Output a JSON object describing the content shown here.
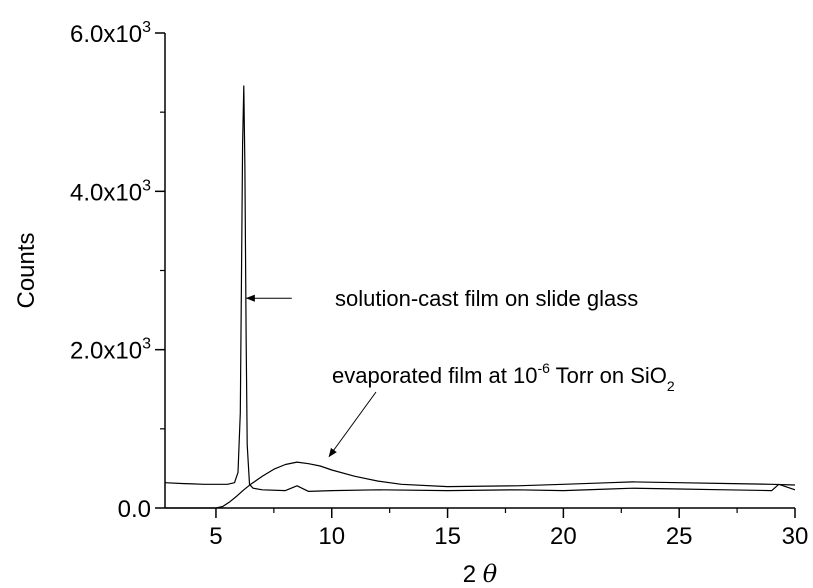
{
  "chart_data": {
    "type": "line",
    "xlabel": "2 θ",
    "xlabel_parts": {
      "main": "2 ",
      "symbol": "θ"
    },
    "ylabel": "Counts",
    "xlim": [
      2.8,
      30
    ],
    "ylim": [
      0,
      6000
    ],
    "grid": false,
    "x_ticks": [
      5,
      10,
      15,
      20,
      25,
      30
    ],
    "x_tick_labels": [
      "5",
      "10",
      "15",
      "20",
      "25",
      "30"
    ],
    "y_ticks": [
      0,
      2000,
      4000,
      6000
    ],
    "y_tick_labels": [
      {
        "base": "0.0",
        "exp": ""
      },
      {
        "base": "2.0x10",
        "exp": "3"
      },
      {
        "base": "4.0x10",
        "exp": "3"
      },
      {
        "base": "6.0x10",
        "exp": "3"
      }
    ],
    "series": [
      {
        "x": [
          2.8,
          3.5,
          4.0,
          4.5,
          5.0,
          5.5,
          5.8,
          5.95,
          6.05,
          6.1,
          6.15,
          6.2,
          6.25,
          6.3,
          6.35,
          6.45,
          6.6,
          7.0,
          8.0,
          8.5,
          9.0,
          10.0,
          12.0,
          15.0,
          18.0,
          20.0,
          22.0,
          23.0,
          25.0,
          27.0,
          29.0,
          29.3,
          30.0
        ],
        "values": [
          320,
          310,
          305,
          300,
          300,
          300,
          320,
          450,
          1200,
          2800,
          4600,
          5330,
          4300,
          2200,
          800,
          300,
          250,
          230,
          220,
          280,
          210,
          220,
          230,
          220,
          230,
          220,
          240,
          250,
          240,
          230,
          220,
          300,
          230
        ],
        "color": "#000000"
      },
      {
        "x": [
          2.8,
          4.0,
          5.0,
          5.3,
          5.6,
          5.9,
          6.2,
          6.5,
          7.0,
          7.5,
          8.0,
          8.5,
          9.0,
          9.5,
          10.0,
          11.0,
          12.0,
          13.0,
          15.0,
          18.0,
          20.0,
          22.0,
          23.0,
          25.0,
          27.0,
          29.0,
          30.0
        ],
        "values": [
          0,
          0,
          0,
          20,
          80,
          150,
          230,
          300,
          400,
          490,
          550,
          580,
          560,
          530,
          480,
          400,
          340,
          300,
          270,
          280,
          300,
          320,
          330,
          320,
          310,
          300,
          290
        ],
        "color": "#000000"
      }
    ],
    "annotations": [
      {
        "text": "solution-cast film on slide glass",
        "points_to_x": 6.2,
        "points_to_y": 2650
      },
      {
        "text_main": "evaporated film at 10",
        "exp": "-6",
        "text_mid": " Torr on SiO",
        "sub": "2",
        "points_to_x": 9.8,
        "points_to_y": 600
      }
    ]
  }
}
